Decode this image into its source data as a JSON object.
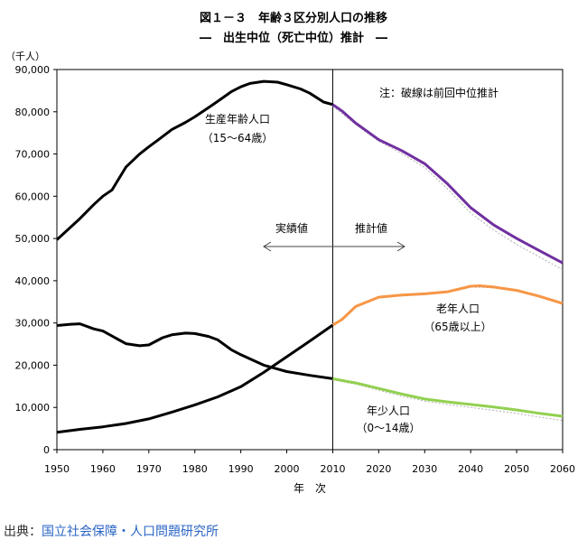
{
  "chart_data": {
    "type": "line",
    "title": "図１－３　年齢３区分別人口の推移",
    "subtitle": "―　出生中位（死亡中位）推計　―",
    "ylabel": "（千人）",
    "xlabel": "年　次",
    "xlim": [
      1950,
      2060
    ],
    "ylim": [
      0,
      90000
    ],
    "x_ticks": [
      "1950",
      "1960",
      "1970",
      "1980",
      "1990",
      "2000",
      "2010",
      "2020",
      "2030",
      "2040",
      "2050",
      "2060"
    ],
    "y_ticks": [
      "0",
      "10,000",
      "20,000",
      "30,000",
      "40,000",
      "50,000",
      "60,000",
      "70,000",
      "80,000",
      "90,000"
    ],
    "divider_year": 2010,
    "note": "注：破線は前回中位推計",
    "region_left": "実績値",
    "region_right": "推計値",
    "colors": {
      "actual": "#000000",
      "working_projection": "#7030a0",
      "elderly_projection": "#f79646",
      "youth_projection": "#92d050",
      "previous_dashed": "#b0b0b0"
    },
    "series": [
      {
        "name": "生産年齢人口",
        "label_line1": "生産年齢人口",
        "label_line2": "（15～64歳）",
        "actual": {
          "x": [
            1950,
            1955,
            1958,
            1960,
            1962,
            1965,
            1968,
            1970,
            1972,
            1975,
            1978,
            1980,
            1983,
            1985,
            1988,
            1990,
            1992,
            1995,
            1998,
            2000,
            2003,
            2005,
            2008,
            2010
          ],
          "y": [
            49700,
            54700,
            58000,
            60000,
            61500,
            66900,
            70000,
            71700,
            73300,
            75800,
            77500,
            78800,
            81000,
            82500,
            84800,
            85900,
            86700,
            87200,
            87000,
            86400,
            85400,
            84400,
            82300,
            81700
          ]
        },
        "projection": {
          "x": [
            2010,
            2012,
            2015,
            2020,
            2025,
            2030,
            2035,
            2040,
            2045,
            2050,
            2055,
            2060
          ],
          "y": [
            81700,
            80200,
            77300,
            73400,
            70800,
            67700,
            62900,
            57300,
            53200,
            50000,
            47100,
            44200
          ]
        },
        "previous": {
          "x": [
            2010,
            2015,
            2020,
            2025,
            2030,
            2035,
            2040,
            2045,
            2050,
            2055,
            2060
          ],
          "y": [
            81300,
            77000,
            73000,
            70100,
            66800,
            61700,
            56000,
            52000,
            48600,
            45600,
            42600
          ]
        }
      },
      {
        "name": "老年人口",
        "label_line1": "老年人口",
        "label_line2": "（65歳以上）",
        "actual": {
          "x": [
            1950,
            1955,
            1960,
            1965,
            1970,
            1975,
            1980,
            1985,
            1990,
            1995,
            2000,
            2005,
            2010
          ],
          "y": [
            4100,
            4800,
            5400,
            6200,
            7300,
            8900,
            10600,
            12500,
            14900,
            18300,
            22000,
            25700,
            29500
          ]
        },
        "projection": {
          "x": [
            2010,
            2012,
            2015,
            2020,
            2025,
            2030,
            2035,
            2040,
            2042,
            2045,
            2050,
            2055,
            2060
          ],
          "y": [
            29500,
            30800,
            33900,
            36100,
            36600,
            36900,
            37400,
            38700,
            38800,
            38500,
            37700,
            36300,
            34600
          ]
        },
        "previous": {
          "x": [
            2010,
            2015,
            2020,
            2025,
            2030,
            2035,
            2040,
            2045,
            2050,
            2055,
            2060
          ],
          "y": [
            29400,
            33800,
            36000,
            36400,
            36700,
            37200,
            38500,
            38300,
            37600,
            36300,
            34600
          ]
        }
      },
      {
        "name": "年少人口",
        "label_line1": "年少人口",
        "label_line2": "（0～14歳）",
        "actual": {
          "x": [
            1950,
            1953,
            1955,
            1958,
            1960,
            1963,
            1965,
            1968,
            1970,
            1973,
            1975,
            1978,
            1980,
            1983,
            1985,
            1988,
            1990,
            1993,
            1995,
            1998,
            2000,
            2005,
            2010
          ],
          "y": [
            29400,
            29700,
            29800,
            28600,
            28100,
            26300,
            25100,
            24600,
            24800,
            26500,
            27200,
            27600,
            27500,
            26800,
            26000,
            23600,
            22500,
            21000,
            20000,
            19100,
            18500,
            17600,
            16800
          ]
        },
        "projection": {
          "x": [
            2010,
            2015,
            2020,
            2025,
            2030,
            2035,
            2040,
            2045,
            2050,
            2055,
            2060
          ],
          "y": [
            16800,
            15800,
            14500,
            13200,
            12000,
            11300,
            10700,
            10100,
            9400,
            8600,
            7900
          ]
        },
        "previous": {
          "x": [
            2010,
            2015,
            2020,
            2025,
            2030,
            2035,
            2040,
            2045,
            2050,
            2055,
            2060
          ],
          "y": [
            16500,
            15500,
            14100,
            12700,
            11500,
            10700,
            10000,
            9300,
            8600,
            7700,
            6900
          ]
        }
      }
    ]
  },
  "source": {
    "prefix": "出典：",
    "link_text": "国立社会保障・人口問題研究所"
  }
}
